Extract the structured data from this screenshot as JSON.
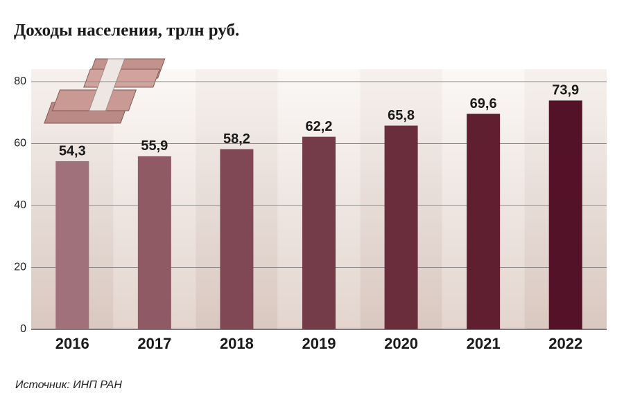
{
  "chart_data": {
    "type": "bar",
    "title": "Доходы населения, трлн руб.",
    "categories": [
      "2016",
      "2017",
      "2018",
      "2019",
      "2020",
      "2021",
      "2022"
    ],
    "values": [
      54.3,
      55.9,
      58.2,
      62.2,
      65.8,
      69.6,
      73.9
    ],
    "value_labels": [
      "54,3",
      "55,9",
      "58,2",
      "62,2",
      "65,8",
      "69,6",
      "73,9"
    ],
    "colors": [
      "#a0717a",
      "#8f5a64",
      "#804854",
      "#743b48",
      "#6a2d3c",
      "#5f1f31",
      "#531227"
    ],
    "ylim": [
      0,
      80
    ],
    "yticks": [
      0,
      20,
      40,
      60,
      80
    ],
    "grid": true,
    "source": "Источник: ИНП РАН"
  }
}
